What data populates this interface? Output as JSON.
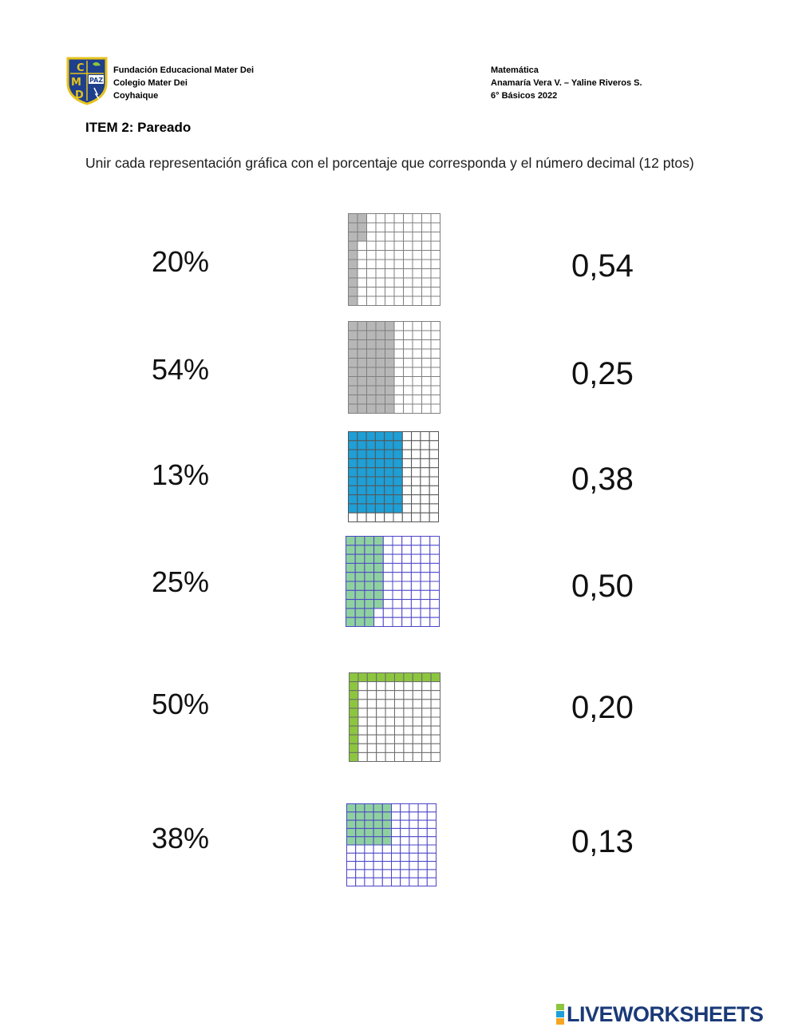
{
  "header": {
    "left_lines": [
      "Fundación Educacional Mater Dei",
      "Colegio Mater Dei",
      "Coyhaique"
    ],
    "right_lines": [
      "Matemática",
      "Anamaría Vera V. – Yaline Riveros S.",
      "6° Básicos 2022"
    ],
    "logo": {
      "letters": [
        "C",
        "M",
        "D"
      ],
      "motto": "PAZ",
      "colors": {
        "shield": "#1d3f8c",
        "trim": "#e6c21c",
        "motto": "#1d3f8c"
      }
    }
  },
  "item": {
    "title": "ITEM 2: Pareado",
    "instructions": "Unir cada representación gráfica con el porcentaje que corresponda y el número decimal (12 ptos)"
  },
  "rows": [
    {
      "percent": "20%",
      "decimal": "0,54",
      "grid": {
        "shaded_cells": 13,
        "color": "#b7b7b7",
        "line_color": "#7f7f7f"
      }
    },
    {
      "percent": "54%",
      "decimal": "0,25",
      "grid": {
        "shaded_cells": 50,
        "color": "#b7b7b7",
        "line_color": "#7f7f7f"
      }
    },
    {
      "percent": "13%",
      "decimal": "0,38",
      "grid": {
        "shaded_cells": 54,
        "color": "#1e9fd6",
        "line_color": "#555555"
      }
    },
    {
      "percent": "25%",
      "decimal": "0,50",
      "grid": {
        "shaded_cells": 38,
        "color": "#8fd19e",
        "line_color": "#4b45c8"
      }
    },
    {
      "percent": "50%",
      "decimal": "0,20",
      "grid": {
        "shaded_cells": 20,
        "color": "#8cc63f",
        "line_color": "#6b6b6b"
      }
    },
    {
      "percent": "38%",
      "decimal": "0,13",
      "grid": {
        "shaded_cells": 25,
        "color": "#8fd19e",
        "line_color": "#4b45c8"
      }
    }
  ],
  "footer": {
    "brand": "LIVEWORKSHEETS",
    "brand_color": "#1a3a78",
    "block_colors": [
      "#8cc63f",
      "#1e9fd6",
      "#f5a623"
    ]
  }
}
